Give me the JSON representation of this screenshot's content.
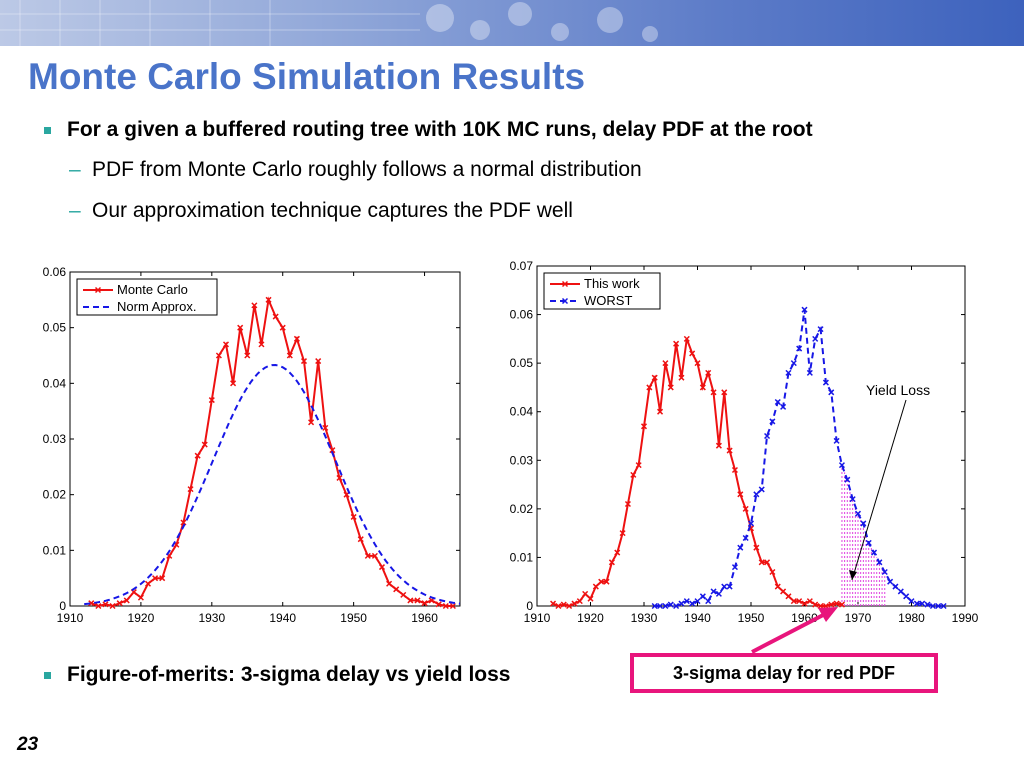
{
  "slide": {
    "title": "Monte Carlo Simulation Results",
    "bullets": [
      "For a given a buffered routing tree with 10K MC runs, delay PDF at the root",
      "PDF from Monte Carlo roughly follows a normal distribution",
      "Our approximation technique captures the PDF well",
      "Figure-of-merits: 3-sigma delay vs yield loss"
    ],
    "sub_dash": "–",
    "callout": "3-sigma delay for red PDF",
    "annotation": "Yield Loss",
    "page_number": "23",
    "colors": {
      "title": "#4a74c9",
      "bullet": "#2aa7a0",
      "callout_border": "#e8157c",
      "red": "#ee1111",
      "blue": "#1717e6",
      "magenta": "#e040e0"
    }
  },
  "chart_data": [
    {
      "type": "line",
      "xlim": [
        1910,
        1965
      ],
      "ylim": [
        0,
        0.06
      ],
      "xticks": [
        "1910",
        "1920",
        "1930",
        "1940",
        "1950",
        "1960"
      ],
      "yticks": [
        "0",
        "0.01",
        "0.02",
        "0.03",
        "0.04",
        "0.05",
        "0.06"
      ],
      "legend_position": "top-left",
      "series": [
        {
          "name": "Monte Carlo",
          "color": "#ee1111",
          "style": "solid",
          "marker": "x",
          "x": [
            1913,
            1914,
            1915,
            1916,
            1917,
            1918,
            1919,
            1920,
            1921,
            1922,
            1923,
            1924,
            1925,
            1926,
            1927,
            1928,
            1929,
            1930,
            1931,
            1932,
            1933,
            1934,
            1935,
            1936,
            1937,
            1938,
            1939,
            1940,
            1941,
            1942,
            1943,
            1944,
            1945,
            1946,
            1947,
            1948,
            1949,
            1950,
            1951,
            1952,
            1953,
            1954,
            1955,
            1956,
            1957,
            1958,
            1959,
            1960,
            1961,
            1962,
            1963,
            1964
          ],
          "y": [
            0.0005,
            0.0,
            0.0003,
            0.0,
            0.0005,
            0.001,
            0.0025,
            0.0015,
            0.004,
            0.005,
            0.005,
            0.009,
            0.011,
            0.015,
            0.021,
            0.027,
            0.029,
            0.037,
            0.045,
            0.047,
            0.04,
            0.05,
            0.045,
            0.054,
            0.047,
            0.055,
            0.052,
            0.05,
            0.045,
            0.048,
            0.044,
            0.033,
            0.044,
            0.032,
            0.028,
            0.023,
            0.02,
            0.016,
            0.012,
            0.009,
            0.009,
            0.007,
            0.004,
            0.003,
            0.002,
            0.001,
            0.001,
            0.0005,
            0.001,
            0.0003,
            0.0,
            0.0
          ]
        },
        {
          "name": "Norm Approx.",
          "color": "#1717e6",
          "style": "dashed",
          "mean": 1938.8,
          "sigma": 8.6,
          "peak": 0.0433
        }
      ]
    },
    {
      "type": "line",
      "xlim": [
        1910,
        1990
      ],
      "ylim": [
        0,
        0.07
      ],
      "xticks": [
        "1910",
        "1920",
        "1930",
        "1940",
        "1950",
        "1960",
        "1970",
        "1980",
        "1990"
      ],
      "yticks": [
        "0",
        "0.01",
        "0.02",
        "0.03",
        "0.04",
        "0.05",
        "0.06",
        "0.07"
      ],
      "legend_position": "top-left",
      "series": [
        {
          "name": "This work",
          "color": "#ee1111",
          "style": "solid",
          "marker": "x",
          "x": [
            1913,
            1914,
            1915,
            1916,
            1917,
            1918,
            1919,
            1920,
            1921,
            1922,
            1923,
            1924,
            1925,
            1926,
            1927,
            1928,
            1929,
            1930,
            1931,
            1932,
            1933,
            1934,
            1935,
            1936,
            1937,
            1938,
            1939,
            1940,
            1941,
            1942,
            1943,
            1944,
            1945,
            1946,
            1947,
            1948,
            1949,
            1950,
            1951,
            1952,
            1953,
            1954,
            1955,
            1956,
            1957,
            1958,
            1959,
            1960,
            1961,
            1962,
            1963,
            1964,
            1965,
            1966,
            1967
          ],
          "y": [
            0.0005,
            0.0,
            0.0003,
            0.0,
            0.0005,
            0.001,
            0.0025,
            0.0015,
            0.004,
            0.005,
            0.005,
            0.009,
            0.011,
            0.015,
            0.021,
            0.027,
            0.029,
            0.037,
            0.045,
            0.047,
            0.04,
            0.05,
            0.045,
            0.054,
            0.047,
            0.055,
            0.052,
            0.05,
            0.045,
            0.048,
            0.044,
            0.033,
            0.044,
            0.032,
            0.028,
            0.023,
            0.02,
            0.016,
            0.012,
            0.009,
            0.009,
            0.007,
            0.004,
            0.003,
            0.002,
            0.001,
            0.001,
            0.0005,
            0.001,
            0.0003,
            0.0,
            0.0,
            0.0003,
            0.0005,
            0.0003
          ]
        },
        {
          "name": "WORST",
          "color": "#1717e6",
          "style": "dashed",
          "marker": "x",
          "x": [
            1932,
            1933,
            1934,
            1935,
            1936,
            1937,
            1938,
            1939,
            1940,
            1941,
            1942,
            1943,
            1944,
            1945,
            1946,
            1947,
            1948,
            1949,
            1950,
            1951,
            1952,
            1953,
            1954,
            1955,
            1956,
            1957,
            1958,
            1959,
            1960,
            1961,
            1962,
            1963,
            1964,
            1965,
            1966,
            1967,
            1968,
            1969,
            1970,
            1971,
            1972,
            1973,
            1974,
            1975,
            1976,
            1977,
            1978,
            1979,
            1980,
            1981,
            1982,
            1983,
            1984,
            1985,
            1986
          ],
          "y": [
            0.0,
            0.0,
            0.0,
            0.0003,
            0.0,
            0.0005,
            0.001,
            0.0005,
            0.001,
            0.002,
            0.001,
            0.003,
            0.0025,
            0.004,
            0.004,
            0.008,
            0.012,
            0.014,
            0.017,
            0.023,
            0.024,
            0.035,
            0.038,
            0.042,
            0.041,
            0.048,
            0.05,
            0.053,
            0.061,
            0.048,
            0.055,
            0.057,
            0.046,
            0.044,
            0.034,
            0.029,
            0.026,
            0.022,
            0.019,
            0.017,
            0.013,
            0.011,
            0.009,
            0.007,
            0.005,
            0.004,
            0.003,
            0.002,
            0.001,
            0.0005,
            0.0005,
            0.0003,
            0.0,
            0.0,
            0.0
          ]
        }
      ],
      "shaded_region": {
        "x_start": 1967,
        "x_end": 1975,
        "color": "#e040e0"
      }
    }
  ]
}
